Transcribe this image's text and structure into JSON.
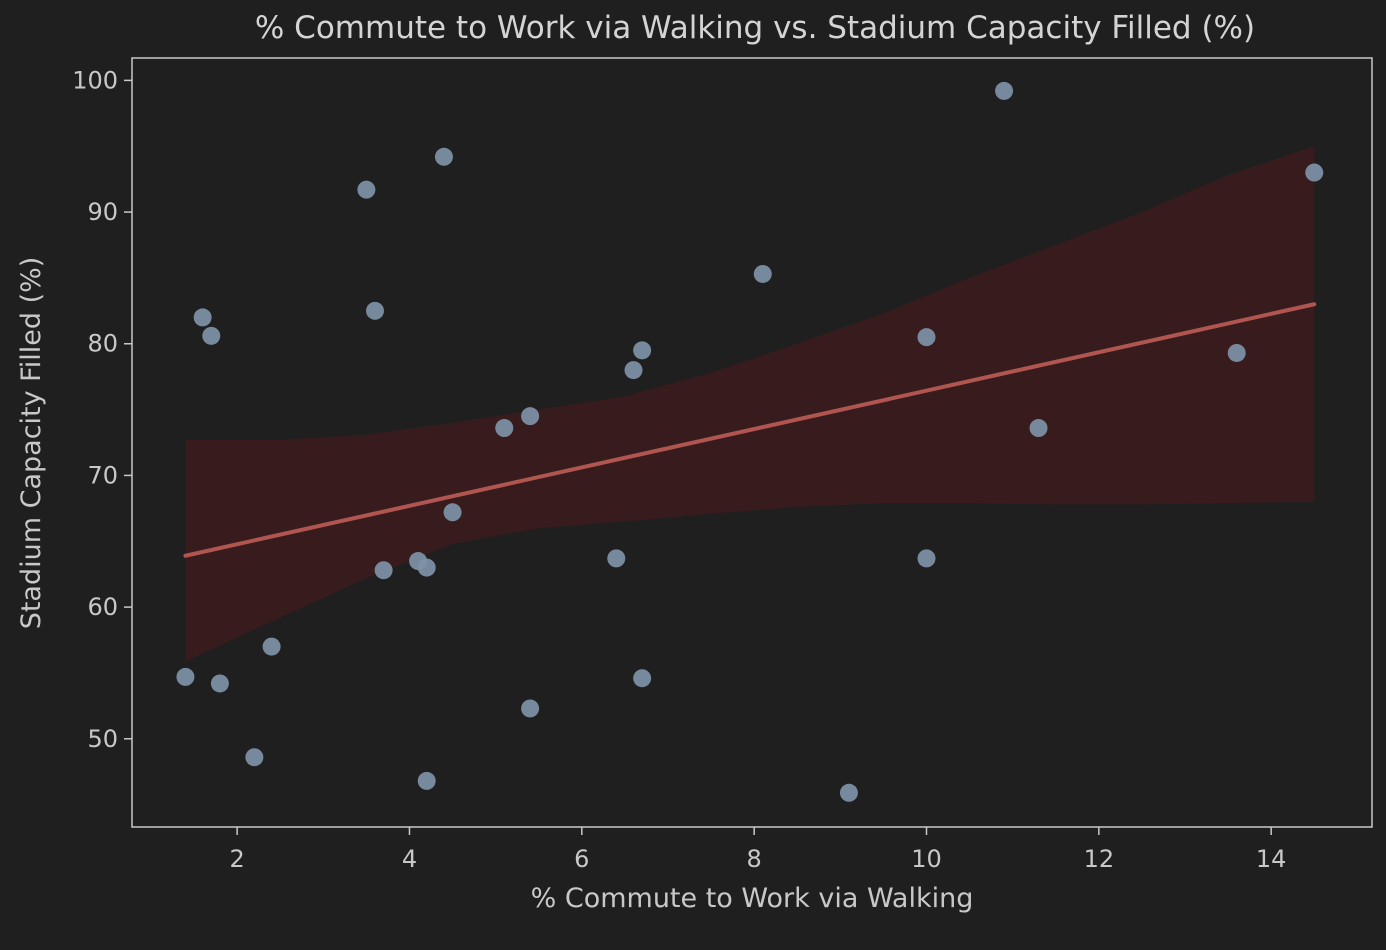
{
  "chart_data": {
    "type": "scatter",
    "title": "% Commute to Work via Walking vs. Stadium Capacity Filled (%)",
    "xlabel": "% Commute to Work via Walking",
    "ylabel": "Stadium Capacity Filled (%)",
    "xlim": [
      0.78,
      15.17
    ],
    "ylim": [
      43.3,
      101.7
    ],
    "x_ticks": [
      "2",
      "4",
      "6",
      "8",
      "10",
      "12",
      "14"
    ],
    "x_tick_values": [
      2,
      4,
      6,
      8,
      10,
      12,
      14
    ],
    "y_ticks": [
      "50",
      "60",
      "70",
      "80",
      "90",
      "100"
    ],
    "y_tick_values": [
      50,
      60,
      70,
      80,
      90,
      100
    ],
    "grid": false,
    "legend": "none",
    "points": [
      {
        "x": 1.4,
        "y": 54.7
      },
      {
        "x": 1.6,
        "y": 82.0
      },
      {
        "x": 1.7,
        "y": 80.6
      },
      {
        "x": 1.8,
        "y": 54.2
      },
      {
        "x": 2.2,
        "y": 48.6
      },
      {
        "x": 2.4,
        "y": 57.0
      },
      {
        "x": 3.5,
        "y": 91.7
      },
      {
        "x": 3.6,
        "y": 82.5
      },
      {
        "x": 3.7,
        "y": 62.8
      },
      {
        "x": 4.1,
        "y": 63.5
      },
      {
        "x": 4.2,
        "y": 63.0
      },
      {
        "x": 4.2,
        "y": 46.8
      },
      {
        "x": 4.4,
        "y": 94.2
      },
      {
        "x": 4.5,
        "y": 67.2
      },
      {
        "x": 5.1,
        "y": 73.6
      },
      {
        "x": 5.4,
        "y": 74.5
      },
      {
        "x": 5.4,
        "y": 52.3
      },
      {
        "x": 6.4,
        "y": 63.7
      },
      {
        "x": 6.6,
        "y": 78.0
      },
      {
        "x": 6.7,
        "y": 79.5
      },
      {
        "x": 6.7,
        "y": 54.6
      },
      {
        "x": 8.1,
        "y": 85.3
      },
      {
        "x": 9.1,
        "y": 45.9
      },
      {
        "x": 10.0,
        "y": 80.5
      },
      {
        "x": 10.0,
        "y": 63.7
      },
      {
        "x": 10.9,
        "y": 99.2
      },
      {
        "x": 11.3,
        "y": 73.6
      },
      {
        "x": 13.6,
        "y": 79.3
      },
      {
        "x": 14.5,
        "y": 93.0
      }
    ],
    "regression": {
      "x": [
        1.4,
        14.5
      ],
      "y": [
        63.9,
        83.0
      ]
    },
    "confidence_band": {
      "x": [
        1.4,
        2.5,
        3.5,
        4.5,
        5.5,
        6.5,
        7.5,
        8.5,
        9.5,
        10.5,
        11.5,
        12.5,
        13.5,
        14.5
      ],
      "upper": [
        72.7,
        72.7,
        73.1,
        74.0,
        75.0,
        76.0,
        77.8,
        80.0,
        82.3,
        85.0,
        87.5,
        90.0,
        92.8,
        95.0
      ],
      "lower": [
        55.9,
        59.2,
        62.2,
        64.8,
        66.0,
        66.5,
        67.1,
        67.6,
        67.9,
        67.9,
        67.8,
        67.8,
        67.9,
        68.0
      ]
    },
    "colors": {
      "background": "#1f1f1f",
      "axes": "#c8c8c8",
      "points": "#7f93a8",
      "regression_line": "#b0554f",
      "confidence_band": "#3a1c1d"
    }
  }
}
